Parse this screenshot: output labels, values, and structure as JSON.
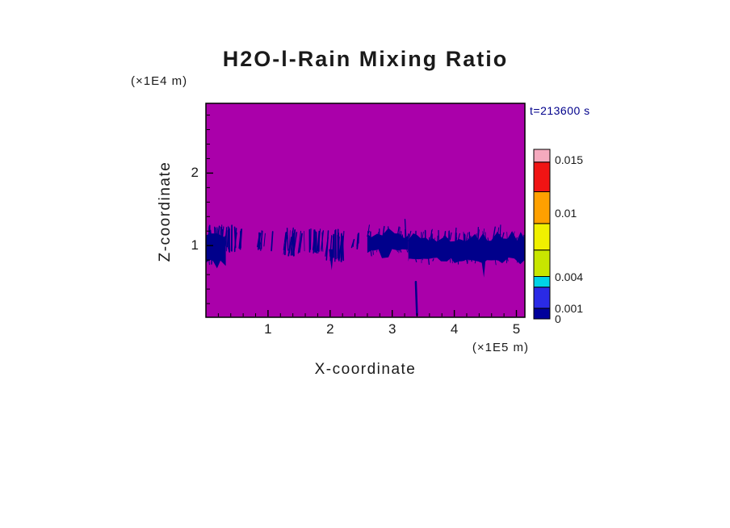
{
  "chart_data": {
    "type": "heatmap",
    "title": "H2O-l-Rain Mixing Ratio",
    "timestamp": "t=213600 s",
    "xlabel": "X-coordinate",
    "ylabel": "Z-coordinate",
    "x_unit_label": "(×1E5 m)",
    "z_unit_label": "(×1E4 m)",
    "x_range": [
      0,
      5.14
    ],
    "z_range": [
      0,
      2.96
    ],
    "x_ticks": [
      1,
      2,
      3,
      4,
      5
    ],
    "z_ticks": [
      1,
      2
    ],
    "x_minor_step": 0.2,
    "z_minor_step": 0.2,
    "background_color": "#AA00AA",
    "background_value": 0,
    "rain_color": "#00008B",
    "colorbar": {
      "max": 0.016,
      "ticks": [
        {
          "value": 0.015,
          "label": "0.015"
        },
        {
          "value": 0.01,
          "label": "0.01"
        },
        {
          "value": 0.004,
          "label": "0.004"
        },
        {
          "value": 0.001,
          "label": "0.001"
        },
        {
          "value": 0,
          "label": "0"
        }
      ],
      "segments": [
        {
          "from": 0,
          "to": 0.001,
          "color": "#00009B"
        },
        {
          "from": 0.001,
          "to": 0.003,
          "color": "#2A2AE6"
        },
        {
          "from": 0.003,
          "to": 0.004,
          "color": "#00D2E6"
        },
        {
          "from": 0.004,
          "to": 0.0065,
          "color": "#C8E600"
        },
        {
          "from": 0.0065,
          "to": 0.009,
          "color": "#F0F000"
        },
        {
          "from": 0.009,
          "to": 0.012,
          "color": "#FFA000"
        },
        {
          "from": 0.012,
          "to": 0.0148,
          "color": "#F01414"
        },
        {
          "from": 0.0148,
          "to": 0.016,
          "color": "#F5AABE"
        }
      ]
    },
    "features": [
      {
        "type": "band",
        "x0": 0.0,
        "x1": 0.32,
        "z0": 0.76,
        "z1": 1.15,
        "density": 0.9
      },
      {
        "type": "streaks",
        "x0": 0.05,
        "x1": 0.62,
        "z0": 0.95,
        "z1": 1.25,
        "density": 0.5
      },
      {
        "type": "streaks",
        "x0": 0.85,
        "x1": 1.12,
        "z0": 0.95,
        "z1": 1.18,
        "density": 0.35
      },
      {
        "type": "streaks",
        "x0": 1.28,
        "x1": 1.58,
        "z0": 0.9,
        "z1": 1.2,
        "density": 0.55
      },
      {
        "type": "streaks",
        "x0": 1.66,
        "x1": 1.9,
        "z0": 0.92,
        "z1": 1.2,
        "density": 0.55
      },
      {
        "type": "streaks",
        "x0": 1.94,
        "x1": 2.24,
        "z0": 0.82,
        "z1": 1.18,
        "density": 0.6
      },
      {
        "type": "spike_down",
        "x": 2.02,
        "z0": 0.66,
        "z1": 0.95,
        "w": 3
      },
      {
        "type": "streaks",
        "x0": 2.38,
        "x1": 2.54,
        "z0": 1.0,
        "z1": 1.14,
        "density": 0.3
      },
      {
        "type": "band",
        "x0": 2.6,
        "x1": 3.26,
        "z0": 0.9,
        "z1": 1.17,
        "density": 0.75
      },
      {
        "type": "band",
        "x0": 3.26,
        "x1": 5.14,
        "z0": 0.78,
        "z1": 1.12,
        "density": 0.95
      },
      {
        "type": "vstreak",
        "x": 3.38,
        "z0": 0.04,
        "z1": 0.5,
        "w": 2.5
      },
      {
        "type": "spike_down",
        "x": 4.47,
        "z0": 0.56,
        "z1": 0.8,
        "w": 2.5
      }
    ]
  }
}
